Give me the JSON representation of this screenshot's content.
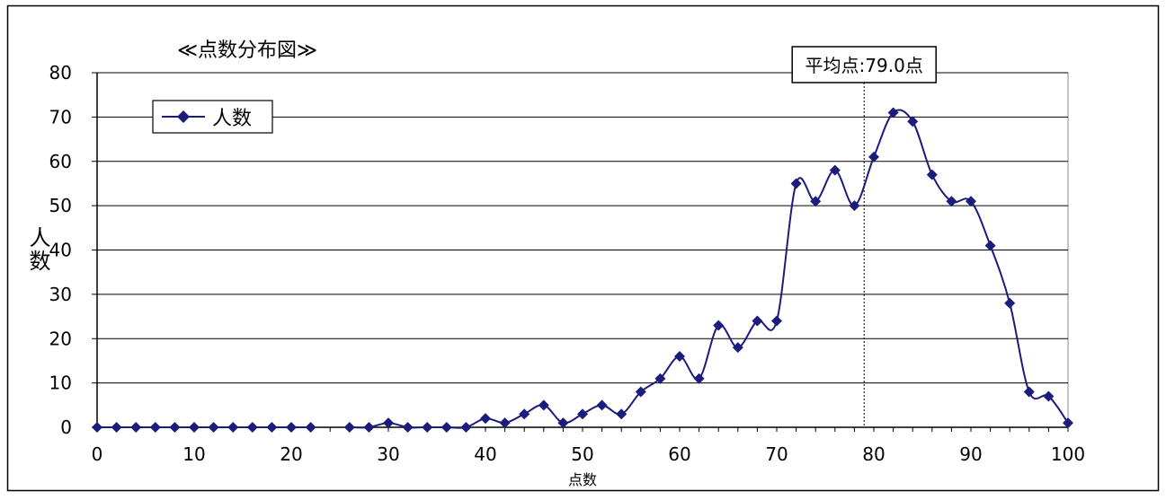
{
  "chart_data": {
    "type": "line",
    "title": "≪点数分布図≫",
    "xlabel": "点数",
    "ylabel": "人数",
    "xlim": [
      0,
      100
    ],
    "ylim": [
      0,
      80
    ],
    "x_ticks": [
      "0",
      "10",
      "20",
      "30",
      "40",
      "50",
      "60",
      "70",
      "80",
      "90",
      "100"
    ],
    "y_ticks": [
      "0",
      "10",
      "20",
      "30",
      "40",
      "50",
      "60",
      "70",
      "80"
    ],
    "grid": "horizontal",
    "legend": {
      "position": "top-left",
      "entries": [
        "人数"
      ]
    },
    "series": [
      {
        "name": "人数",
        "color": "#1c1c7c",
        "marker": "diamond",
        "segments": [
          [
            [
              0,
              0
            ],
            [
              2,
              0
            ],
            [
              4,
              0
            ],
            [
              6,
              0
            ],
            [
              8,
              0
            ],
            [
              10,
              0
            ],
            [
              12,
              0
            ],
            [
              14,
              0
            ],
            [
              16,
              0
            ],
            [
              18,
              0
            ],
            [
              20,
              0
            ],
            [
              22,
              0
            ]
          ],
          [
            [
              26,
              0
            ],
            [
              28,
              0
            ],
            [
              30,
              1
            ],
            [
              32,
              0
            ],
            [
              34,
              0
            ],
            [
              36,
              0
            ],
            [
              38,
              0
            ],
            [
              40,
              2
            ],
            [
              42,
              1
            ],
            [
              44,
              3
            ],
            [
              46,
              5
            ],
            [
              48,
              1
            ],
            [
              50,
              3
            ],
            [
              52,
              5
            ],
            [
              54,
              3
            ],
            [
              56,
              8
            ],
            [
              58,
              11
            ],
            [
              60,
              16
            ],
            [
              62,
              11
            ],
            [
              64,
              23
            ],
            [
              66,
              18
            ],
            [
              68,
              24
            ],
            [
              70,
              24
            ],
            [
              72,
              55
            ],
            [
              74,
              51
            ],
            [
              76,
              58
            ],
            [
              78,
              50
            ],
            [
              80,
              61
            ],
            [
              82,
              71
            ],
            [
              84,
              69
            ],
            [
              86,
              57
            ],
            [
              88,
              51
            ],
            [
              90,
              51
            ],
            [
              92,
              41
            ],
            [
              94,
              28
            ],
            [
              96,
              8
            ],
            [
              98,
              7
            ],
            [
              100,
              1
            ]
          ]
        ]
      }
    ],
    "annotations": [
      {
        "text": "平均点:79.0点",
        "x": 79.0
      }
    ]
  }
}
